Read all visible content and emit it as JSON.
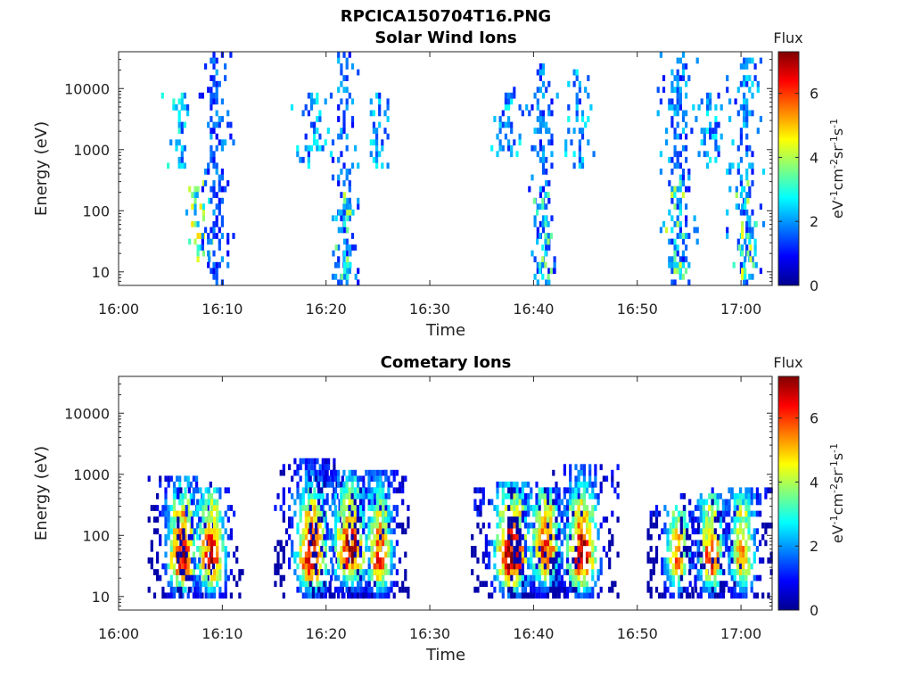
{
  "figure_title": "RPCICA150704T16.PNG",
  "chart_data": [
    {
      "type": "heatmap",
      "title": "Solar Wind Ions",
      "xlabel": "Time",
      "ylabel": "Energy (eV)",
      "y_scale": "log",
      "ylim": [
        6,
        40000
      ],
      "x_range_minutes_after_1600": [
        0,
        63
      ],
      "x_ticks": [
        "16:00",
        "16:10",
        "16:20",
        "16:30",
        "16:40",
        "16:50",
        "17:00"
      ],
      "y_ticks": [
        "10",
        "100",
        "1000",
        "10000"
      ],
      "colorbar": {
        "label": "Flux",
        "unit": "eV-1cm-2sr-1s-1",
        "range": [
          0,
          7.3
        ],
        "ticks": [
          "0",
          "2",
          "4",
          "6"
        ]
      },
      "bursts": [
        {
          "t": 5.7,
          "spread": 0.5,
          "e_low": 500,
          "e_high": 9000,
          "flux": 2.2
        },
        {
          "t": 7.5,
          "spread": 0.5,
          "e_low": 15,
          "e_high": 300,
          "flux": 3.4
        },
        {
          "t": 9.2,
          "spread": 0.55,
          "e_low": 6,
          "e_high": 38000,
          "flux": 1.5
        },
        {
          "t": 18.5,
          "spread": 0.6,
          "e_low": 500,
          "e_high": 9000,
          "flux": 2.0
        },
        {
          "t": 21.7,
          "spread": 0.45,
          "e_low": 6,
          "e_high": 38000,
          "flux": 1.6
        },
        {
          "t": 21.7,
          "spread": 0.35,
          "e_low": 8,
          "e_high": 200,
          "flux": 2.9
        },
        {
          "t": 25.0,
          "spread": 0.5,
          "e_low": 500,
          "e_high": 10000,
          "flux": 2.0
        },
        {
          "t": 37.5,
          "spread": 0.6,
          "e_low": 700,
          "e_high": 10000,
          "flux": 2.0
        },
        {
          "t": 40.8,
          "spread": 0.5,
          "e_low": 6,
          "e_high": 25000,
          "flux": 1.6
        },
        {
          "t": 40.8,
          "spread": 0.35,
          "e_low": 8,
          "e_high": 200,
          "flux": 2.9
        },
        {
          "t": 44.2,
          "spread": 0.55,
          "e_low": 500,
          "e_high": 20000,
          "flux": 2.0
        },
        {
          "t": 53.8,
          "spread": 0.6,
          "e_low": 6,
          "e_high": 40000,
          "flux": 1.7
        },
        {
          "t": 53.8,
          "spread": 0.35,
          "e_low": 8,
          "e_high": 300,
          "flux": 3.0
        },
        {
          "t": 57.2,
          "spread": 0.6,
          "e_low": 500,
          "e_high": 9000,
          "flux": 2.0
        },
        {
          "t": 60.3,
          "spread": 0.55,
          "e_low": 6,
          "e_high": 30000,
          "flux": 1.8
        },
        {
          "t": 60.3,
          "spread": 0.35,
          "e_low": 8,
          "e_high": 300,
          "flux": 3.2
        }
      ]
    },
    {
      "type": "heatmap",
      "title": "Cometary Ions",
      "xlabel": "Time",
      "ylabel": "Energy (eV)",
      "y_scale": "log",
      "ylim": [
        6,
        40000
      ],
      "x_range_minutes_after_1600": [
        0,
        63
      ],
      "x_ticks": [
        "16:00",
        "16:10",
        "16:20",
        "16:30",
        "16:40",
        "16:50",
        "17:00"
      ],
      "y_ticks": [
        "10",
        "100",
        "1000",
        "10000"
      ],
      "colorbar": {
        "label": "Flux",
        "unit": "eV-1cm-2sr-1s-1",
        "range": [
          0,
          7.3
        ],
        "ticks": [
          "0",
          "2",
          "4",
          "6"
        ]
      },
      "bursts": [
        {
          "t": 6.0,
          "spread": 1.0,
          "e_low": 10,
          "e_high": 1000,
          "peak_e": 40,
          "flux": 7.0
        },
        {
          "t": 8.8,
          "spread": 1.0,
          "e_low": 10,
          "e_high": 600,
          "peak_e": 40,
          "flux": 6.5
        },
        {
          "t": 18.5,
          "spread": 1.1,
          "e_low": 10,
          "e_high": 2000,
          "peak_e": 40,
          "flux": 7.0
        },
        {
          "t": 22.2,
          "spread": 1.2,
          "e_low": 10,
          "e_high": 1300,
          "peak_e": 50,
          "flux": 6.6
        },
        {
          "t": 25.0,
          "spread": 0.9,
          "e_low": 10,
          "e_high": 1300,
          "peak_e": 40,
          "flux": 6.2
        },
        {
          "t": 37.8,
          "spread": 1.2,
          "e_low": 10,
          "e_high": 800,
          "peak_e": 40,
          "flux": 7.3
        },
        {
          "t": 41.0,
          "spread": 1.1,
          "e_low": 10,
          "e_high": 600,
          "peak_e": 50,
          "flux": 6.3
        },
        {
          "t": 44.5,
          "spread": 1.1,
          "e_low": 10,
          "e_high": 1400,
          "peak_e": 40,
          "flux": 6.8
        },
        {
          "t": 53.8,
          "spread": 0.9,
          "e_low": 10,
          "e_high": 350,
          "peak_e": 40,
          "flux": 5.3
        },
        {
          "t": 57.0,
          "spread": 0.9,
          "e_low": 10,
          "e_high": 500,
          "peak_e": 40,
          "flux": 6.0
        },
        {
          "t": 60.0,
          "spread": 0.9,
          "e_low": 10,
          "e_high": 600,
          "peak_e": 40,
          "flux": 5.3
        }
      ]
    }
  ]
}
